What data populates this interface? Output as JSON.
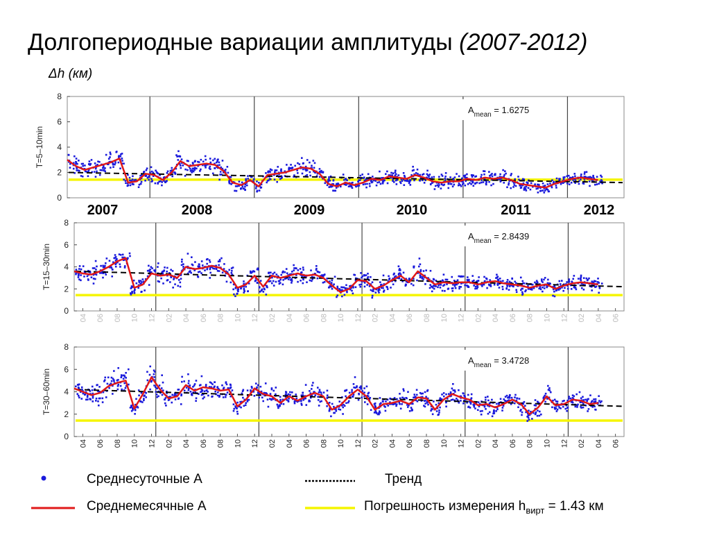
{
  "title": {
    "text": "Долгопериодные вариации амплитуды",
    "years": "(2007-2012)",
    "unit": "Δh (км)"
  },
  "year_labels": [
    "2007",
    "2008",
    "2009",
    "2010",
    "2011",
    "2012"
  ],
  "month_ticks": [
    "04",
    "06",
    "08",
    "10",
    "12",
    "02",
    "04",
    "06",
    "08",
    "10",
    "12",
    "02",
    "04",
    "06",
    "08",
    "10",
    "12",
    "02",
    "04",
    "06",
    "08",
    "10",
    "12",
    "02",
    "04",
    "06",
    "08",
    "10",
    "12",
    "02",
    "04",
    "06"
  ],
  "legend": {
    "daily": "Среднесуточные А",
    "trend": "Тренд",
    "monthly": "Среднемесячные А",
    "error_prefix": "Погрешность измерения h",
    "error_sub": "вирт",
    "error_suffix": " = 1.43 км"
  },
  "colors": {
    "daily": "#1a1adc",
    "monthly": "#e01818",
    "error": "#f5f500",
    "trend": "#000000"
  },
  "chart_data": [
    {
      "type": "scatter",
      "ylabel": "T=5–10min",
      "ylim": [
        0,
        8
      ],
      "yticks": [
        0,
        2,
        4,
        6,
        8
      ],
      "xlim": [
        "2007-03",
        "2012-07"
      ],
      "annotation": {
        "text": "A",
        "sub": "mean",
        "value": " = 1.6275"
      },
      "year_dividers": [
        "2007-12",
        "2008-12",
        "2009-12",
        "2010-12",
        "2011-12"
      ],
      "error_level": 1.43,
      "trend": [
        2.0,
        1.2
      ],
      "monthly": [
        [
          "2007-03",
          3.0
        ],
        [
          "2007-04",
          2.5
        ],
        [
          "2007-05",
          2.2
        ],
        [
          "2007-06",
          2.4
        ],
        [
          "2007-07",
          2.6
        ],
        [
          "2007-08",
          2.8
        ],
        [
          "2007-09",
          3.1
        ],
        [
          "2007-10",
          1.2
        ],
        [
          "2007-11",
          1.3
        ],
        [
          "2007-12",
          1.9
        ],
        [
          "2008-01",
          1.8
        ],
        [
          "2008-02",
          1.4
        ],
        [
          "2008-03",
          2.0
        ],
        [
          "2008-04",
          2.9
        ],
        [
          "2008-05",
          2.5
        ],
        [
          "2008-06",
          2.6
        ],
        [
          "2008-07",
          2.7
        ],
        [
          "2008-08",
          2.6
        ],
        [
          "2008-09",
          2.1
        ],
        [
          "2008-10",
          1.2
        ],
        [
          "2008-11",
          1.0
        ],
        [
          "2008-12",
          1.4
        ],
        [
          "2009-01",
          0.9
        ],
        [
          "2009-02",
          1.8
        ],
        [
          "2009-03",
          1.9
        ],
        [
          "2009-04",
          2.0
        ],
        [
          "2009-05",
          2.2
        ],
        [
          "2009-06",
          2.4
        ],
        [
          "2009-07",
          2.3
        ],
        [
          "2009-08",
          1.9
        ],
        [
          "2009-09",
          1.1
        ],
        [
          "2009-10",
          0.9
        ],
        [
          "2009-11",
          1.2
        ],
        [
          "2009-12",
          1.0
        ],
        [
          "2010-01",
          1.2
        ],
        [
          "2010-02",
          1.5
        ],
        [
          "2010-03",
          1.4
        ],
        [
          "2010-04",
          1.7
        ],
        [
          "2010-05",
          1.6
        ],
        [
          "2010-06",
          1.5
        ],
        [
          "2010-07",
          1.8
        ],
        [
          "2010-08",
          1.6
        ],
        [
          "2010-09",
          1.3
        ],
        [
          "2010-10",
          1.2
        ],
        [
          "2010-11",
          1.3
        ],
        [
          "2010-12",
          1.3
        ],
        [
          "2011-01",
          1.5
        ],
        [
          "2011-02",
          1.4
        ],
        [
          "2011-03",
          1.6
        ],
        [
          "2011-04",
          1.5
        ],
        [
          "2011-05",
          1.6
        ],
        [
          "2011-06",
          1.4
        ],
        [
          "2011-07",
          1.1
        ],
        [
          "2011-08",
          1.0
        ],
        [
          "2011-09",
          0.9
        ],
        [
          "2011-10",
          0.8
        ],
        [
          "2011-11",
          1.1
        ],
        [
          "2011-12",
          1.3
        ],
        [
          "2012-01",
          1.5
        ],
        [
          "2012-02",
          1.6
        ],
        [
          "2012-03",
          1.5
        ],
        [
          "2012-04",
          1.4
        ]
      ]
    },
    {
      "type": "scatter",
      "ylabel": "T=15–30min",
      "ylim": [
        0,
        8
      ],
      "yticks": [
        0,
        2,
        4,
        6,
        8
      ],
      "xlim": [
        "2007-03",
        "2012-07"
      ],
      "annotation": {
        "text": "A",
        "sub": "mean",
        "value": " = 2.8439"
      },
      "year_dividers": [
        "2007-12",
        "2008-12",
        "2009-12",
        "2010-12",
        "2011-12"
      ],
      "error_level": 1.43,
      "trend": [
        3.6,
        2.2
      ],
      "monthly": [
        [
          "2007-03",
          3.6
        ],
        [
          "2007-04",
          3.4
        ],
        [
          "2007-05",
          3.3
        ],
        [
          "2007-06",
          3.6
        ],
        [
          "2007-07",
          4.0
        ],
        [
          "2007-08",
          4.5
        ],
        [
          "2007-09",
          4.8
        ],
        [
          "2007-10",
          2.1
        ],
        [
          "2007-11",
          2.4
        ],
        [
          "2007-12",
          3.4
        ],
        [
          "2008-01",
          3.2
        ],
        [
          "2008-02",
          3.3
        ],
        [
          "2008-03",
          3.0
        ],
        [
          "2008-04",
          4.0
        ],
        [
          "2008-05",
          3.8
        ],
        [
          "2008-06",
          3.9
        ],
        [
          "2008-07",
          4.1
        ],
        [
          "2008-08",
          3.9
        ],
        [
          "2008-09",
          3.3
        ],
        [
          "2008-10",
          2.1
        ],
        [
          "2008-11",
          2.4
        ],
        [
          "2008-12",
          3.2
        ],
        [
          "2009-01",
          2.2
        ],
        [
          "2009-02",
          3.2
        ],
        [
          "2009-03",
          3.0
        ],
        [
          "2009-04",
          3.2
        ],
        [
          "2009-05",
          3.4
        ],
        [
          "2009-06",
          3.2
        ],
        [
          "2009-07",
          3.3
        ],
        [
          "2009-08",
          3.0
        ],
        [
          "2009-09",
          2.3
        ],
        [
          "2009-10",
          1.7
        ],
        [
          "2009-11",
          2.0
        ],
        [
          "2009-12",
          2.8
        ],
        [
          "2010-01",
          2.7
        ],
        [
          "2010-02",
          2.0
        ],
        [
          "2010-03",
          2.3
        ],
        [
          "2010-04",
          2.8
        ],
        [
          "2010-05",
          3.2
        ],
        [
          "2010-06",
          2.6
        ],
        [
          "2010-07",
          3.6
        ],
        [
          "2010-08",
          3.0
        ],
        [
          "2010-09",
          2.4
        ],
        [
          "2010-10",
          2.6
        ],
        [
          "2010-11",
          2.5
        ],
        [
          "2010-12",
          2.6
        ],
        [
          "2011-01",
          2.6
        ],
        [
          "2011-02",
          2.4
        ],
        [
          "2011-03",
          2.6
        ],
        [
          "2011-04",
          2.7
        ],
        [
          "2011-05",
          2.5
        ],
        [
          "2011-06",
          2.4
        ],
        [
          "2011-07",
          2.3
        ],
        [
          "2011-08",
          2.1
        ],
        [
          "2011-09",
          2.3
        ],
        [
          "2011-10",
          2.4
        ],
        [
          "2011-11",
          2.0
        ],
        [
          "2011-12",
          2.3
        ],
        [
          "2012-01",
          2.5
        ],
        [
          "2012-02",
          2.6
        ],
        [
          "2012-03",
          2.5
        ],
        [
          "2012-04",
          2.4
        ]
      ]
    },
    {
      "type": "scatter",
      "ylabel": "T=30–60min",
      "ylim": [
        0,
        8
      ],
      "yticks": [
        0,
        2,
        4,
        6,
        8
      ],
      "xlim": [
        "2007-03",
        "2012-07"
      ],
      "annotation": {
        "text": "A",
        "sub": "mean",
        "value": " = 3.4728"
      },
      "year_dividers": [
        "2007-12",
        "2008-12",
        "2009-12",
        "2010-12",
        "2011-12"
      ],
      "error_level": 1.43,
      "trend": [
        4.2,
        2.7
      ],
      "monthly": [
        [
          "2007-03",
          4.3
        ],
        [
          "2007-04",
          4.0
        ],
        [
          "2007-05",
          3.7
        ],
        [
          "2007-06",
          3.9
        ],
        [
          "2007-07",
          4.5
        ],
        [
          "2007-08",
          4.8
        ],
        [
          "2007-09",
          5.0
        ],
        [
          "2007-10",
          2.5
        ],
        [
          "2007-11",
          3.8
        ],
        [
          "2007-12",
          5.3
        ],
        [
          "2008-01",
          4.2
        ],
        [
          "2008-02",
          3.4
        ],
        [
          "2008-03",
          3.6
        ],
        [
          "2008-04",
          4.6
        ],
        [
          "2008-05",
          4.1
        ],
        [
          "2008-06",
          4.4
        ],
        [
          "2008-07",
          4.3
        ],
        [
          "2008-08",
          4.1
        ],
        [
          "2008-09",
          4.2
        ],
        [
          "2008-10",
          2.7
        ],
        [
          "2008-11",
          3.3
        ],
        [
          "2008-12",
          4.3
        ],
        [
          "2009-01",
          3.8
        ],
        [
          "2009-02",
          3.6
        ],
        [
          "2009-03",
          3.0
        ],
        [
          "2009-04",
          3.6
        ],
        [
          "2009-05",
          3.2
        ],
        [
          "2009-06",
          3.6
        ],
        [
          "2009-07",
          3.9
        ],
        [
          "2009-08",
          3.6
        ],
        [
          "2009-09",
          2.4
        ],
        [
          "2009-10",
          2.8
        ],
        [
          "2009-11",
          3.6
        ],
        [
          "2009-12",
          4.2
        ],
        [
          "2010-01",
          3.6
        ],
        [
          "2010-02",
          2.4
        ],
        [
          "2010-03",
          2.9
        ],
        [
          "2010-04",
          3.0
        ],
        [
          "2010-05",
          3.2
        ],
        [
          "2010-06",
          2.9
        ],
        [
          "2010-07",
          3.5
        ],
        [
          "2010-08",
          3.4
        ],
        [
          "2010-09",
          2.4
        ],
        [
          "2010-10",
          3.3
        ],
        [
          "2010-11",
          3.8
        ],
        [
          "2010-12",
          3.5
        ],
        [
          "2011-01",
          3.3
        ],
        [
          "2011-02",
          2.8
        ],
        [
          "2011-03",
          2.9
        ],
        [
          "2011-04",
          2.6
        ],
        [
          "2011-05",
          2.9
        ],
        [
          "2011-06",
          3.3
        ],
        [
          "2011-07",
          2.9
        ],
        [
          "2011-08",
          2.0
        ],
        [
          "2011-09",
          2.6
        ],
        [
          "2011-10",
          3.6
        ],
        [
          "2011-11",
          2.8
        ],
        [
          "2011-12",
          2.9
        ],
        [
          "2012-01",
          3.3
        ],
        [
          "2012-02",
          3.2
        ],
        [
          "2012-03",
          2.9
        ],
        [
          "2012-04",
          3.0
        ]
      ]
    }
  ]
}
